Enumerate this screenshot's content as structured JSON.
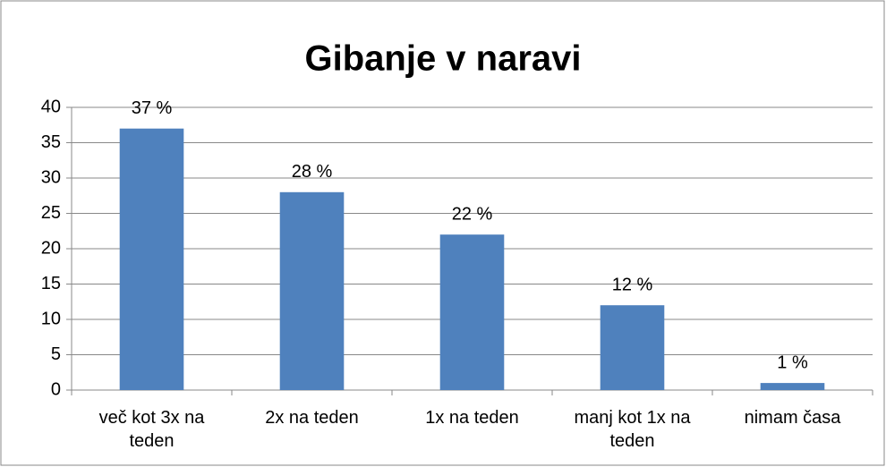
{
  "chart_data": {
    "type": "bar",
    "title": "Gibanje v naravi",
    "categories": [
      "več kot 3x na teden",
      "2x na teden",
      "1x na teden",
      "manj kot 1x na teden",
      "nimam časa"
    ],
    "values": [
      37,
      28,
      22,
      12,
      1
    ],
    "value_labels": [
      "37 %",
      "28 %",
      "22 %",
      "12 %",
      "1 %"
    ],
    "color": "#4f81bd",
    "ylim": [
      0,
      40
    ],
    "yticks": [
      0,
      5,
      10,
      15,
      20,
      25,
      30,
      35,
      40
    ],
    "grid": true
  }
}
